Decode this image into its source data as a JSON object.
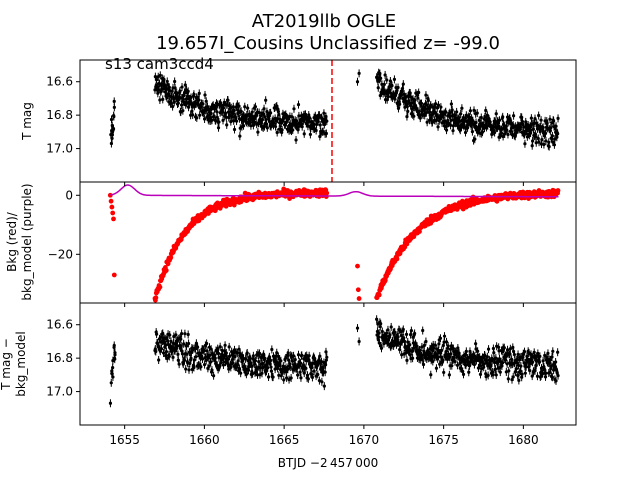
{
  "figure": {
    "title_line1": "AT2019llb  OGLE",
    "title_line2": "19.657I_Cousins Unclassified z= -99.0",
    "annotation": "s13 cam3ccd4"
  },
  "chart_data": {
    "type": "scatter",
    "x_axis": {
      "label": "BTJD −2 457 000",
      "xlim": [
        1652.2,
        1683.3
      ],
      "ticks": [
        1655,
        1660,
        1665,
        1670,
        1675,
        1680
      ],
      "tick_labels": [
        "1655",
        "1660",
        "1665",
        "1670",
        "1675",
        "1680"
      ]
    },
    "segments": [
      [
        1654.1,
        1654.4
      ],
      [
        1656.9,
        1667.7
      ],
      [
        1669.5,
        1669.8
      ],
      [
        1670.8,
        1682.2
      ]
    ],
    "marker_line": {
      "x": 1668.0,
      "color": "#ff0000",
      "style": "dashed"
    },
    "panels": [
      {
        "id": "top",
        "ylabel": "T mag",
        "ylim": [
          17.2,
          16.47
        ],
        "inverted": true,
        "ticks": [
          16.6,
          16.8,
          17.0
        ],
        "tick_labels": [
          "16.6",
          "16.8",
          "17.0"
        ],
        "series": [
          {
            "color": "#000000",
            "marker": "point-with-errorbar"
          }
        ],
        "profile": {
          "orbit1_start": 16.6,
          "orbit1_end": 16.85,
          "orbit2_start": 16.6,
          "orbit2_end": 16.9,
          "scatter": 0.08,
          "gap_points": [
            16.85,
            16.6,
            16.55
          ]
        }
      },
      {
        "id": "middle",
        "ylabel_line1": "Bkg (red)/",
        "ylabel_line2": "bkg_model (purple)",
        "ylim": [
          -36.5,
          4.5
        ],
        "ticks": [
          -20,
          0
        ],
        "tick_labels": [
          "−20",
          "0"
        ],
        "series": [
          {
            "color": "#ff0000",
            "marker": "point"
          },
          {
            "color": "#bb00bb",
            "marker": "line"
          }
        ],
        "profile": {
          "bkg_low": -35,
          "bkg_high": 1,
          "model_bumps": [
            [
              1655.2,
              3.5
            ],
            [
              1669.5,
              1.5
            ]
          ]
        }
      },
      {
        "id": "bottom",
        "ylabel_line1": "T mag −",
        "ylabel_line2": "bkg_model",
        "ylim": [
          17.2,
          16.47
        ],
        "inverted": true,
        "ticks": [
          16.6,
          16.8,
          17.0
        ],
        "tick_labels": [
          "16.6",
          "16.8",
          "17.0"
        ],
        "series": [
          {
            "color": "#000000",
            "marker": "point-with-errorbar"
          }
        ],
        "profile": {
          "orbit1_start": 16.7,
          "orbit1_end": 16.85,
          "orbit2_start": 16.65,
          "orbit2_end": 16.85,
          "scatter": 0.09,
          "gap_points": [
            16.95,
            16.62,
            16.7
          ]
        }
      }
    ]
  }
}
